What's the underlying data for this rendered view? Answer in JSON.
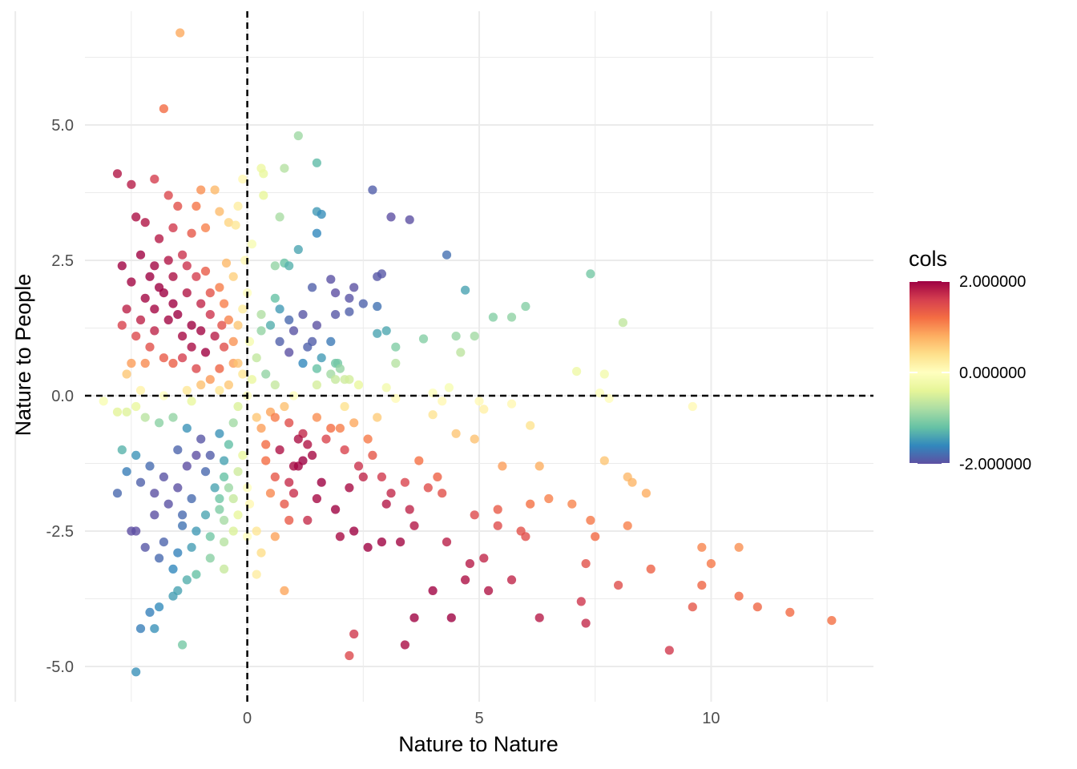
{
  "chart_data": {
    "type": "scatter",
    "title": "",
    "xlabel": "Nature to Nature",
    "ylabel": "Nature to People",
    "xlim": [
      -3.5,
      13.5
    ],
    "ylim": [
      -5.65,
      7.1
    ],
    "x_ticks": [
      0,
      5,
      10
    ],
    "x_tick_labels": [
      "0",
      "5",
      "10"
    ],
    "y_ticks": [
      -5,
      -2.5,
      0,
      2.5,
      5
    ],
    "y_tick_labels": [
      "-5.0",
      "-2.5",
      "0.0",
      "2.5",
      "5.0"
    ],
    "grid": true,
    "reference_lines": [
      {
        "axis": "x",
        "value": 0,
        "style": "dashed"
      },
      {
        "axis": "y",
        "value": 0,
        "style": "dashed"
      }
    ],
    "colormap": "Spectral (reversed)",
    "color_stops": [
      "#5E4FA2",
      "#3288BD",
      "#66C2A5",
      "#ABDDA4",
      "#E6F598",
      "#FFFFBF",
      "#FEE08B",
      "#FDAE61",
      "#F46D43",
      "#D53E4F",
      "#9E0142"
    ],
    "legend": {
      "title": "cols",
      "position": "right",
      "labels": [
        {
          "text": "2.000000",
          "value": 2
        },
        {
          "text": "0.000000",
          "value": 0
        },
        {
          "text": "-2.000000",
          "value": -2
        }
      ]
    },
    "points": [
      [
        -1.45,
        6.7
      ],
      [
        -1.8,
        5.3
      ],
      [
        -2.8,
        4.1
      ],
      [
        -2.5,
        3.9
      ],
      [
        -2.0,
        4.0
      ],
      [
        -1.7,
        3.7
      ],
      [
        -1.5,
        3.5
      ],
      [
        -1.1,
        3.5
      ],
      [
        -1.0,
        3.8
      ],
      [
        -0.7,
        3.8
      ],
      [
        -2.4,
        3.3
      ],
      [
        -2.2,
        3.2
      ],
      [
        -1.9,
        2.9
      ],
      [
        -1.6,
        3.1
      ],
      [
        -1.2,
        3.0
      ],
      [
        -0.9,
        3.1
      ],
      [
        -0.6,
        3.4
      ],
      [
        -0.4,
        3.2
      ],
      [
        -2.7,
        2.4
      ],
      [
        -2.3,
        2.6
      ],
      [
        -2.0,
        2.4
      ],
      [
        -1.7,
        2.5
      ],
      [
        -1.4,
        2.6
      ],
      [
        -1.1,
        2.2
      ],
      [
        -2.5,
        2.1
      ],
      [
        -2.2,
        1.8
      ],
      [
        -1.9,
        2.0
      ],
      [
        -1.6,
        1.7
      ],
      [
        -1.3,
        1.9
      ],
      [
        -1.0,
        1.7
      ],
      [
        -2.6,
        1.6
      ],
      [
        -2.3,
        1.4
      ],
      [
        -2.0,
        1.2
      ],
      [
        -1.7,
        1.4
      ],
      [
        -1.4,
        1.1
      ],
      [
        -2.4,
        1.1
      ],
      [
        -2.1,
        0.9
      ],
      [
        -1.8,
        0.7
      ],
      [
        -2.7,
        1.3
      ],
      [
        -2.5,
        0.6
      ],
      [
        -1.5,
        1.5
      ],
      [
        -1.8,
        1.9
      ],
      [
        -2.1,
        2.2
      ],
      [
        -1.3,
        2.4
      ],
      [
        -2.2,
        0.6
      ],
      [
        -0.9,
        2.3
      ],
      [
        -1.6,
        2.2
      ],
      [
        -2.0,
        1.6
      ],
      [
        -1.2,
        1.3
      ],
      [
        -0.8,
        1.9
      ],
      [
        -2.6,
        0.4
      ],
      [
        -0.6,
        2.0
      ],
      [
        -0.8,
        1.5
      ],
      [
        -1.0,
        1.2
      ],
      [
        -1.2,
        0.9
      ],
      [
        -1.4,
        0.7
      ],
      [
        -1.6,
        0.6
      ],
      [
        -0.5,
        1.7
      ],
      [
        -0.3,
        2.2
      ],
      [
        -0.7,
        1.1
      ],
      [
        -0.9,
        0.8
      ],
      [
        -1.1,
        0.5
      ],
      [
        -0.4,
        1.4
      ],
      [
        -0.2,
        3.5
      ],
      [
        -0.25,
        3.15
      ],
      [
        -0.1,
        4.0
      ],
      [
        -0.45,
        2.45
      ],
      [
        -0.55,
        1.3
      ],
      [
        -0.3,
        0.6
      ],
      [
        -1.0,
        0.2
      ],
      [
        -0.6,
        0.5
      ],
      [
        -0.5,
        0.9
      ],
      [
        -0.3,
        1.0
      ],
      [
        -0.2,
        1.3
      ],
      [
        -0.1,
        1.6
      ],
      [
        -0.8,
        0.3
      ],
      [
        -0.4,
        0.2
      ],
      [
        -0.2,
        0.6
      ],
      [
        0.0,
        1.9
      ],
      [
        0.1,
        2.8
      ],
      [
        -0.05,
        2.5
      ],
      [
        0.05,
        1.0
      ],
      [
        -0.1,
        0.4
      ],
      [
        -0.6,
        0.1
      ],
      [
        -1.3,
        0.1
      ],
      [
        -2.3,
        0.1
      ],
      [
        -3.1,
        -0.1
      ],
      [
        -2.4,
        -0.2
      ],
      [
        -1.8,
        0.0
      ],
      [
        -1.2,
        -0.1
      ],
      [
        0.2,
        0.7
      ],
      [
        0.1,
        0.3
      ],
      [
        0.4,
        0.4
      ],
      [
        0.6,
        0.2
      ],
      [
        0.3,
        1.2
      ],
      [
        0.0,
        0.0
      ],
      [
        -0.2,
        -0.2
      ],
      [
        0.5,
        -0.3
      ],
      [
        0.8,
        -0.2
      ],
      [
        1.0,
        0.0
      ],
      [
        1.5,
        0.2
      ],
      [
        -0.3,
        -0.5
      ],
      [
        0.2,
        -0.4
      ],
      [
        0.3,
        4.2
      ],
      [
        0.35,
        4.1
      ],
      [
        0.3,
        1.5
      ],
      [
        0.5,
        1.3
      ],
      [
        0.7,
        1.0
      ],
      [
        0.9,
        0.8
      ],
      [
        1.2,
        0.6
      ],
      [
        1.5,
        0.5
      ],
      [
        1.8,
        0.4
      ],
      [
        2.1,
        0.3
      ],
      [
        2.4,
        0.2
      ],
      [
        3.0,
        0.15
      ],
      [
        4.0,
        0.05
      ],
      [
        4.35,
        0.15
      ],
      [
        7.6,
        0.05
      ],
      [
        0.6,
        1.8
      ],
      [
        0.9,
        1.4
      ],
      [
        1.4,
        1.0
      ],
      [
        1.9,
        0.6
      ],
      [
        0.35,
        3.7
      ],
      [
        0.6,
        2.4
      ],
      [
        0.8,
        2.45
      ],
      [
        1.1,
        2.7
      ],
      [
        1.4,
        2.0
      ],
      [
        0.7,
        1.6
      ],
      [
        1.0,
        1.2
      ],
      [
        1.3,
        0.9
      ],
      [
        1.6,
        0.7
      ],
      [
        1.9,
        0.3
      ],
      [
        1.95,
        0.6
      ],
      [
        2.2,
        0.3
      ],
      [
        1.5,
        1.3
      ],
      [
        1.8,
        1.0
      ],
      [
        2.0,
        0.5
      ],
      [
        1.2,
        1.5
      ],
      [
        1.1,
        4.8
      ],
      [
        1.5,
        4.3
      ],
      [
        0.8,
        4.2
      ],
      [
        1.5,
        3.4
      ],
      [
        1.6,
        3.35
      ],
      [
        0.7,
        3.3
      ],
      [
        1.5,
        3.0
      ],
      [
        0.9,
        2.4
      ],
      [
        1.8,
        2.15
      ],
      [
        1.9,
        1.9
      ],
      [
        2.3,
        2.0
      ],
      [
        2.2,
        1.8
      ],
      [
        2.5,
        1.7
      ],
      [
        2.8,
        1.65
      ],
      [
        2.7,
        3.8
      ],
      [
        3.1,
        3.3
      ],
      [
        3.5,
        3.25
      ],
      [
        2.8,
        2.2
      ],
      [
        2.9,
        2.25
      ],
      [
        1.9,
        1.5
      ],
      [
        2.2,
        1.55
      ],
      [
        2.8,
        1.15
      ],
      [
        3.0,
        1.2
      ],
      [
        3.2,
        0.9
      ],
      [
        3.8,
        1.05
      ],
      [
        3.2,
        0.6
      ],
      [
        4.3,
        2.6
      ],
      [
        4.7,
        1.95
      ],
      [
        4.5,
        1.1
      ],
      [
        4.9,
        1.1
      ],
      [
        4.6,
        0.8
      ],
      [
        5.3,
        1.45
      ],
      [
        5.7,
        1.45
      ],
      [
        6.0,
        1.65
      ],
      [
        7.4,
        2.25
      ],
      [
        8.1,
        1.35
      ],
      [
        7.1,
        0.45
      ],
      [
        7.7,
        0.4
      ],
      [
        0.3,
        -0.6
      ],
      [
        0.6,
        -0.4
      ],
      [
        0.9,
        -0.5
      ],
      [
        1.2,
        -0.7
      ],
      [
        1.5,
        -0.4
      ],
      [
        1.8,
        -0.6
      ],
      [
        2.1,
        -0.2
      ],
      [
        0.4,
        -1.2
      ],
      [
        0.7,
        -1.0
      ],
      [
        1.0,
        -1.3
      ],
      [
        1.3,
        -0.9
      ],
      [
        0.5,
        -1.8
      ],
      [
        0.2,
        -2.5
      ],
      [
        0.3,
        -2.9
      ],
      [
        0.2,
        -3.3
      ],
      [
        0.6,
        -1.5
      ],
      [
        0.9,
        -1.6
      ],
      [
        1.2,
        -1.2
      ],
      [
        0.4,
        -0.9
      ],
      [
        3.2,
        -0.05
      ],
      [
        4.2,
        -0.1
      ],
      [
        4.0,
        -0.35
      ],
      [
        5.0,
        -0.1
      ],
      [
        5.7,
        -0.15
      ],
      [
        7.8,
        -0.05
      ],
      [
        0.6,
        -2.6
      ],
      [
        0.8,
        -2.0
      ],
      [
        1.0,
        -1.8
      ],
      [
        1.1,
        -1.3
      ],
      [
        1.4,
        -1.1
      ],
      [
        1.7,
        -0.8
      ],
      [
        2.0,
        -0.6
      ],
      [
        2.3,
        -0.5
      ],
      [
        2.8,
        -0.4
      ],
      [
        1.6,
        -1.6
      ],
      [
        5.1,
        -0.25
      ],
      [
        9.6,
        -0.2
      ],
      [
        0.9,
        -2.3
      ],
      [
        1.3,
        -2.3
      ],
      [
        1.5,
        -1.9
      ],
      [
        1.9,
        -2.1
      ],
      [
        2.2,
        -1.7
      ],
      [
        2.4,
        -1.3
      ],
      [
        2.5,
        -1.5
      ],
      [
        2.7,
        -1.1
      ],
      [
        2.9,
        -1.5
      ],
      [
        3.1,
        -1.8
      ],
      [
        3.4,
        -1.6
      ],
      [
        3.7,
        -1.2
      ],
      [
        3.9,
        -1.7
      ],
      [
        4.2,
        -1.8
      ],
      [
        4.5,
        -0.7
      ],
      [
        4.9,
        -0.8
      ],
      [
        6.1,
        -0.55
      ],
      [
        5.4,
        -2.1
      ],
      [
        5.5,
        -1.3
      ],
      [
        6.3,
        -1.3
      ],
      [
        7.7,
        -1.2
      ],
      [
        8.2,
        -1.5
      ],
      [
        8.3,
        -1.6
      ],
      [
        8.6,
        -1.8
      ],
      [
        2.0,
        -2.6
      ],
      [
        2.3,
        -2.5
      ],
      [
        2.6,
        -2.8
      ],
      [
        2.9,
        -2.7
      ],
      [
        3.3,
        -2.7
      ],
      [
        3.6,
        -2.4
      ],
      [
        4.3,
        -2.7
      ],
      [
        4.9,
        -2.2
      ],
      [
        5.4,
        -2.4
      ],
      [
        5.9,
        -2.5
      ],
      [
        6.0,
        -2.6
      ],
      [
        7.0,
        -2.0
      ],
      [
        7.4,
        -2.3
      ],
      [
        7.5,
        -2.6
      ],
      [
        8.2,
        -2.4
      ],
      [
        0.8,
        -3.6
      ],
      [
        4.0,
        -3.6
      ],
      [
        4.8,
        -3.1
      ],
      [
        5.1,
        -3.0
      ],
      [
        5.7,
        -3.4
      ],
      [
        7.3,
        -3.1
      ],
      [
        8.0,
        -3.5
      ],
      [
        8.7,
        -3.2
      ],
      [
        9.8,
        -2.8
      ],
      [
        10.0,
        -3.1
      ],
      [
        10.6,
        -2.8
      ],
      [
        9.8,
        -3.5
      ],
      [
        10.6,
        -3.7
      ],
      [
        7.2,
        -3.8
      ],
      [
        7.3,
        -4.2
      ],
      [
        2.3,
        -4.4
      ],
      [
        2.2,
        -4.8
      ],
      [
        3.4,
        -4.6
      ],
      [
        3.6,
        -4.1
      ],
      [
        4.4,
        -4.1
      ],
      [
        6.3,
        -4.1
      ],
      [
        9.6,
        -3.9
      ],
      [
        11.0,
        -3.9
      ],
      [
        11.7,
        -4.0
      ],
      [
        12.6,
        -4.15
      ],
      [
        9.1,
        -4.7
      ],
      [
        4.7,
        -3.4
      ],
      [
        5.2,
        -3.6
      ],
      [
        6.5,
        -1.9
      ],
      [
        6.1,
        -2.0
      ],
      [
        3.0,
        -2.0
      ],
      [
        3.5,
        -2.1
      ],
      [
        4.1,
        -1.5
      ],
      [
        2.1,
        -1.0
      ],
      [
        2.6,
        -0.8
      ],
      [
        1.1,
        -0.8
      ],
      [
        -1.6,
        -0.4
      ],
      [
        -1.3,
        -0.6
      ],
      [
        -1.0,
        -0.8
      ],
      [
        -0.8,
        -1.1
      ],
      [
        -0.6,
        -0.7
      ],
      [
        -0.4,
        -0.9
      ],
      [
        -1.9,
        -0.5
      ],
      [
        -2.2,
        -0.4
      ],
      [
        -2.6,
        -0.3
      ],
      [
        -2.8,
        -0.3
      ],
      [
        -0.2,
        -1.4
      ],
      [
        0.0,
        -1.7
      ],
      [
        -0.3,
        -1.9
      ],
      [
        0.05,
        -2.0
      ],
      [
        -0.5,
        -1.5
      ],
      [
        0.0,
        -2.6
      ],
      [
        -0.1,
        -1.1
      ],
      [
        -0.5,
        -1.2
      ],
      [
        -0.7,
        -1.7
      ],
      [
        -0.9,
        -1.4
      ],
      [
        -1.1,
        -1.1
      ],
      [
        -1.3,
        -1.3
      ],
      [
        -1.5,
        -1.0
      ],
      [
        -0.4,
        -1.7
      ],
      [
        -0.6,
        -2.1
      ],
      [
        -0.8,
        -2.6
      ],
      [
        -0.5,
        -2.7
      ],
      [
        -0.3,
        -2.5
      ],
      [
        -0.5,
        -2.3
      ],
      [
        -0.5,
        -3.2
      ],
      [
        -0.6,
        -1.9
      ],
      [
        -0.2,
        -2.2
      ],
      [
        -2.7,
        -1.0
      ],
      [
        -2.4,
        -1.1
      ],
      [
        -2.1,
        -1.3
      ],
      [
        -1.8,
        -1.5
      ],
      [
        -1.5,
        -1.7
      ],
      [
        -1.2,
        -1.9
      ],
      [
        -0.9,
        -2.2
      ],
      [
        -2.6,
        -1.4
      ],
      [
        -2.3,
        -1.6
      ],
      [
        -2.0,
        -1.8
      ],
      [
        -1.7,
        -2.0
      ],
      [
        -1.4,
        -2.2
      ],
      [
        -1.1,
        -2.5
      ],
      [
        -0.8,
        -3.0
      ],
      [
        -2.5,
        -2.5
      ],
      [
        -2.2,
        -2.8
      ],
      [
        -1.9,
        -3.0
      ],
      [
        -1.6,
        -3.2
      ],
      [
        -1.3,
        -3.4
      ],
      [
        -2.8,
        -1.8
      ],
      [
        -2.4,
        -2.5
      ],
      [
        -1.8,
        -2.7
      ],
      [
        -1.5,
        -2.9
      ],
      [
        -1.2,
        -2.8
      ],
      [
        -1.1,
        -3.3
      ],
      [
        -1.6,
        -3.7
      ],
      [
        -1.9,
        -3.9
      ],
      [
        -2.1,
        -4.0
      ],
      [
        -2.3,
        -4.3
      ],
      [
        -2.0,
        -4.3
      ],
      [
        -1.4,
        -4.6
      ],
      [
        -2.4,
        -5.1
      ],
      [
        -1.5,
        -3.6
      ],
      [
        -2.0,
        -2.2
      ],
      [
        -1.4,
        -2.4
      ]
    ]
  }
}
